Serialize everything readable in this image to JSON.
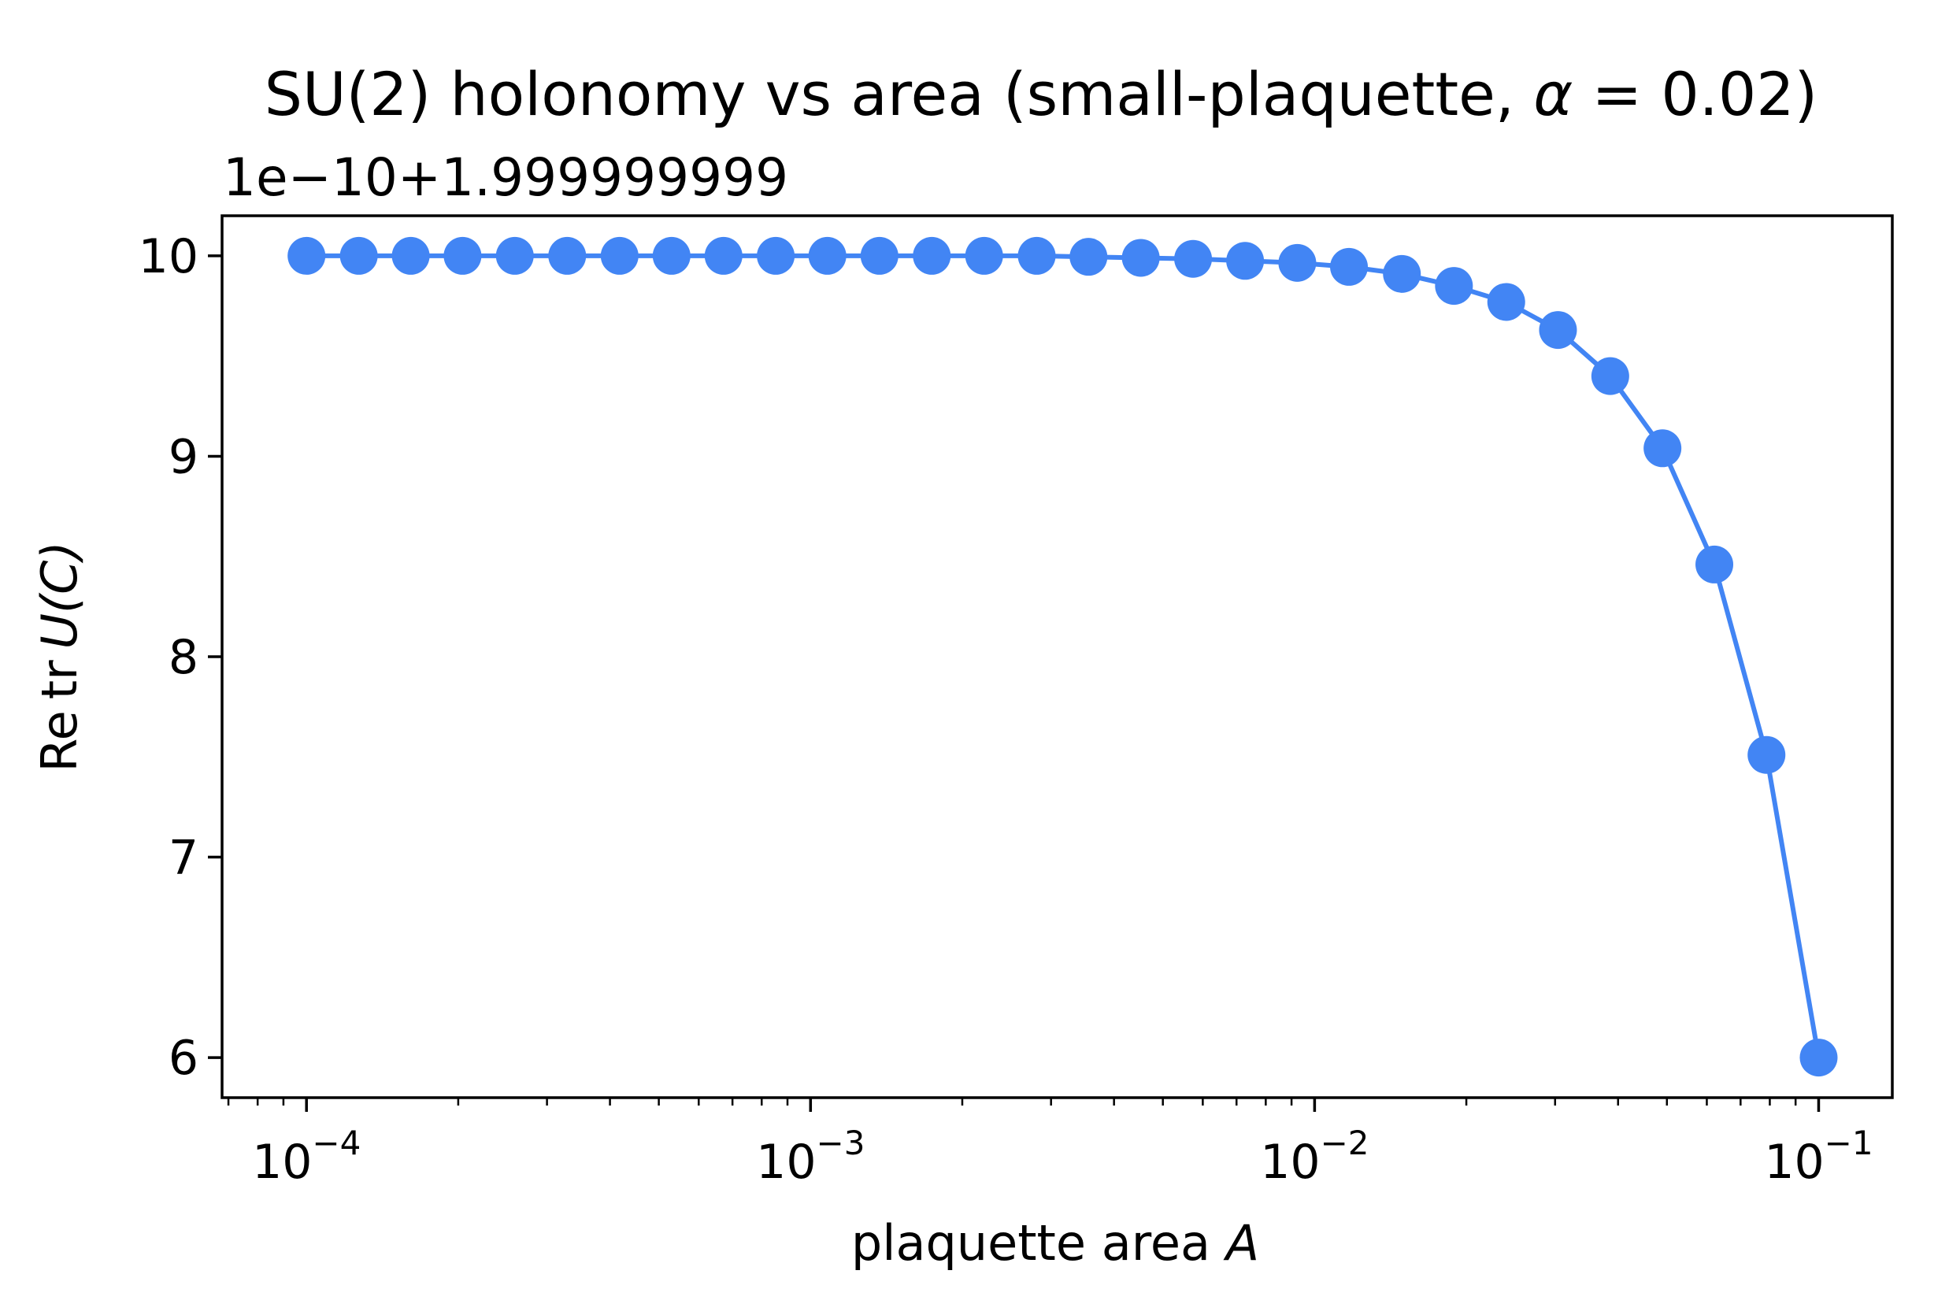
{
  "chart_data": {
    "type": "line",
    "title_main": "SU(2) holonomy vs area (small-plaquette, ",
    "title_greek": "α",
    "title_eq": " = 0.02)",
    "offset_label": "1e−10+1.999999999",
    "xlabel_text": "plaquette area ",
    "xlabel_var": "A",
    "ylabel_re": "Re",
    "ylabel_tr": "tr",
    "ylabel_rest": "U(C)",
    "x_scale": "log",
    "xlim": [
      6.8e-05,
      0.14
    ],
    "ylim": [
      5.8,
      10.2
    ],
    "x_ticks": [
      {
        "value": 0.0001,
        "base": "10",
        "exp": "−4"
      },
      {
        "value": 0.001,
        "base": "10",
        "exp": "−3"
      },
      {
        "value": 0.01,
        "base": "10",
        "exp": "−2"
      },
      {
        "value": 0.1,
        "base": "10",
        "exp": "−1"
      }
    ],
    "y_ticks": [
      {
        "value": 6,
        "label": "6"
      },
      {
        "value": 7,
        "label": "7"
      },
      {
        "value": 8,
        "label": "8"
      },
      {
        "value": 9,
        "label": "9"
      },
      {
        "value": 10,
        "label": "10"
      }
    ],
    "grid": false,
    "series": [
      {
        "color": "#4285f4",
        "x": [
          0.0001,
          0.000127,
          0.000161,
          0.000204,
          0.000259,
          0.000329,
          0.000418,
          0.00053,
          0.000672,
          0.000853,
          0.00108,
          0.00137,
          0.00174,
          0.00221,
          0.00281,
          0.00356,
          0.00452,
          0.00574,
          0.00728,
          0.00924,
          0.0117,
          0.0149,
          0.0189,
          0.024,
          0.0304,
          0.0386,
          0.049,
          0.0621,
          0.0788,
          0.1
        ],
        "y": [
          10.0,
          10.0,
          10.0,
          10.0,
          10.0,
          10.0,
          10.0,
          10.0,
          10.0,
          10.0,
          10.0,
          10.0,
          10.0,
          10.0,
          10.0,
          9.995,
          9.99,
          9.985,
          9.975,
          9.965,
          9.945,
          9.91,
          9.85,
          9.77,
          9.63,
          9.4,
          9.04,
          8.46,
          7.51,
          6.0
        ]
      }
    ]
  }
}
